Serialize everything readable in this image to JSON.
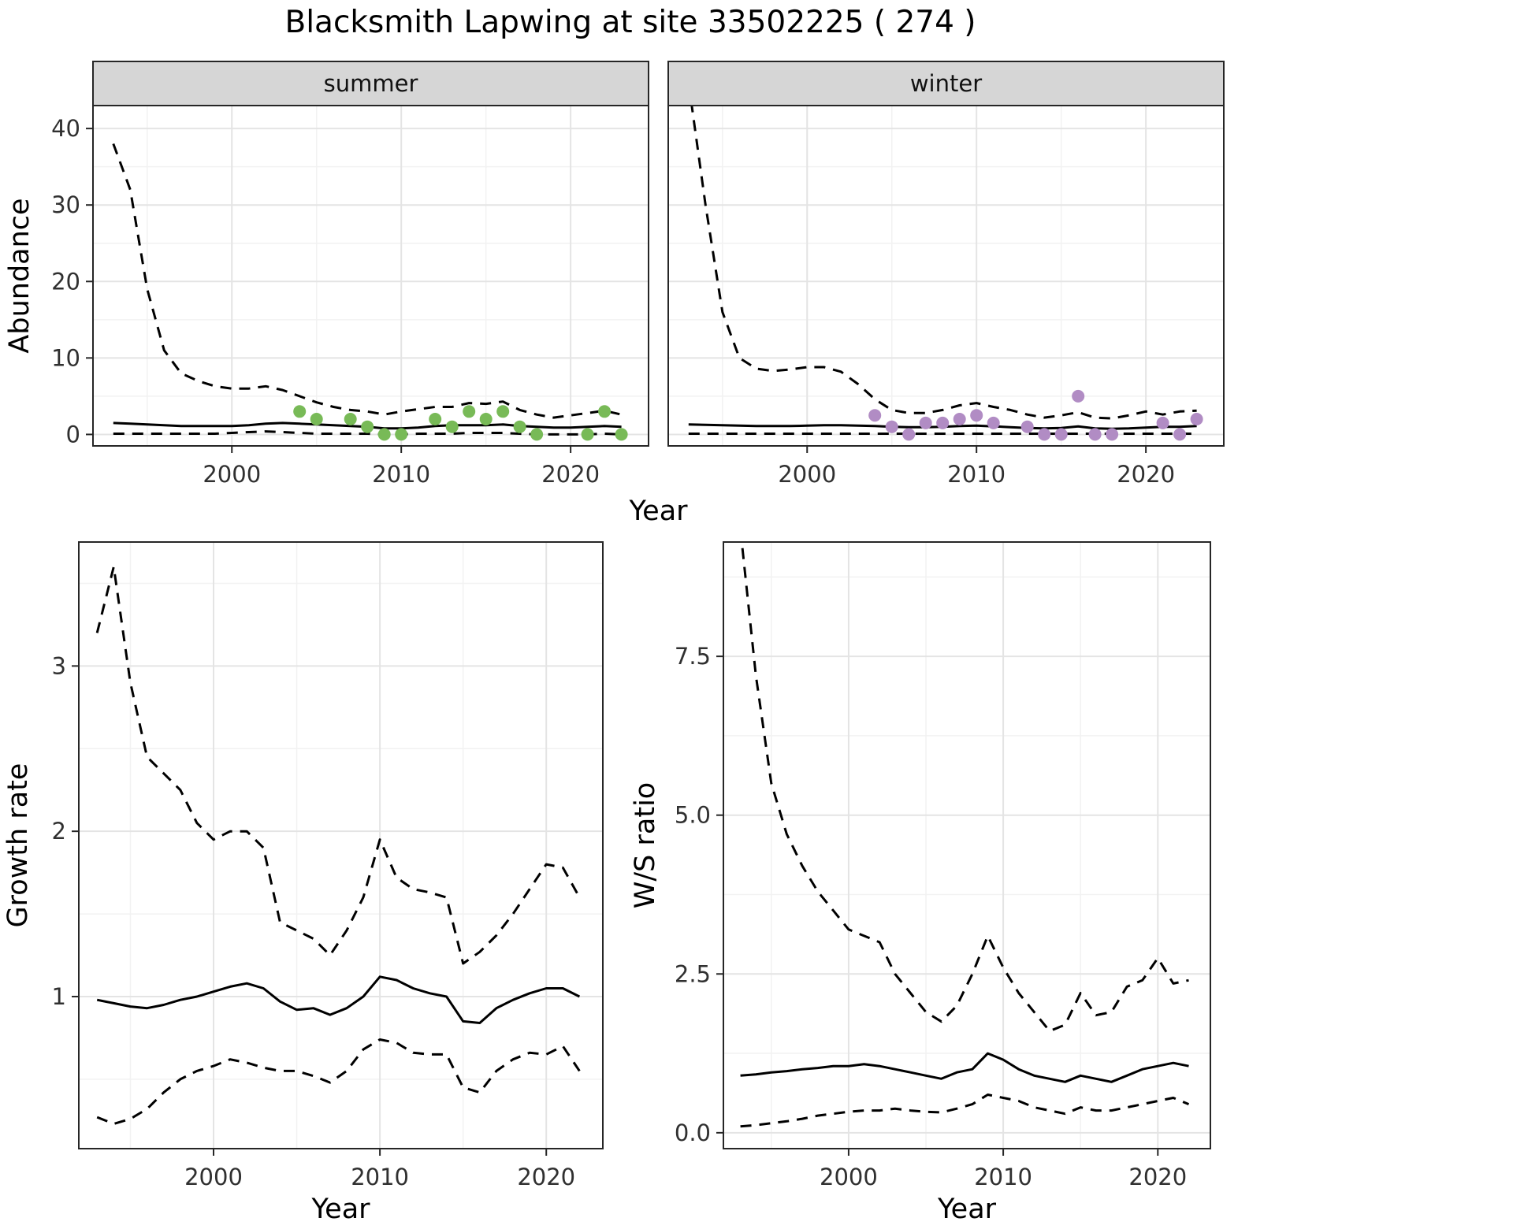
{
  "title": "Blacksmith Lapwing at site 33502225 ( 274 )",
  "theme": {
    "background": "#ffffff",
    "panel_background": "#ffffff",
    "panel_border": "#262626",
    "grid_major": "#e4e4e4",
    "grid_minor": "#f2f2f2",
    "strip_background": "#d6d6d6",
    "strip_text": "#111111",
    "tick_label_color": "#303030",
    "axis_title_color": "#000000",
    "line_color": "#000000",
    "summer_point_color": "#78ba57",
    "winter_point_color": "#b18cc4"
  },
  "chart_data": [
    {
      "id": "abundance-summer",
      "type": "line",
      "facet_label": "summer",
      "xlabel": "Year",
      "ylabel": "Abundance",
      "xlim": [
        1991.8,
        2024.6
      ],
      "ylim": [
        -1.5,
        43
      ],
      "xticks": {
        "values": [
          2000,
          2010,
          2020
        ],
        "labels": [
          "2000",
          "2010",
          "2020"
        ]
      },
      "yticks": {
        "values": [
          0,
          10,
          20,
          30,
          40
        ],
        "labels": [
          "0",
          "10",
          "20",
          "30",
          "40"
        ]
      },
      "x": [
        1993,
        1994,
        1995,
        1996,
        1997,
        1998,
        1999,
        2000,
        2001,
        2002,
        2003,
        2004,
        2005,
        2006,
        2007,
        2008,
        2009,
        2010,
        2011,
        2012,
        2013,
        2014,
        2015,
        2016,
        2017,
        2018,
        2019,
        2020,
        2021,
        2022,
        2023
      ],
      "series": [
        {
          "name": "upper-95ci",
          "style": "dashed",
          "values": [
            38,
            32,
            19,
            11,
            8,
            7,
            6.3,
            6,
            6,
            6.3,
            5.8,
            5,
            4.2,
            3.6,
            3.2,
            3,
            2.6,
            3,
            3.3,
            3.6,
            3.6,
            4.1,
            4,
            4.3,
            3.2,
            2.6,
            2.2,
            2.5,
            2.8,
            3.1,
            2.6
          ]
        },
        {
          "name": "mean",
          "style": "solid",
          "values": [
            1.5,
            1.4,
            1.3,
            1.2,
            1.1,
            1.1,
            1.1,
            1.1,
            1.2,
            1.4,
            1.5,
            1.4,
            1.3,
            1.2,
            1.1,
            1.0,
            0.8,
            0.8,
            0.9,
            1.1,
            1.2,
            1.2,
            1.2,
            1.3,
            1.1,
            1.0,
            0.9,
            0.9,
            1.0,
            1.1,
            1.0
          ]
        },
        {
          "name": "lower-95ci",
          "style": "dashed",
          "values": [
            0.1,
            0.1,
            0.1,
            0.1,
            0.1,
            0.1,
            0.1,
            0.2,
            0.3,
            0.4,
            0.3,
            0.2,
            0.1,
            0.1,
            0.1,
            0.1,
            0.0,
            0.0,
            0.1,
            0.1,
            0.1,
            0.2,
            0.2,
            0.2,
            0.1,
            0.0,
            0.0,
            0.0,
            0.0,
            0.1,
            0.0
          ]
        }
      ],
      "points": {
        "name": "observed-counts-summer",
        "color_key": "summer_point_color",
        "x": [
          2004,
          2005,
          2007,
          2008,
          2009,
          2010,
          2012,
          2013,
          2014,
          2015,
          2016,
          2017,
          2018,
          2021,
          2022,
          2023
        ],
        "y": [
          3,
          2,
          2,
          1,
          0,
          0,
          2,
          1,
          3,
          2,
          3,
          1,
          0,
          0,
          3,
          0
        ]
      }
    },
    {
      "id": "abundance-winter",
      "type": "line",
      "facet_label": "winter",
      "xlabel": "Year",
      "ylabel": "Abundance",
      "xlim": [
        1991.8,
        2024.6
      ],
      "ylim": [
        -1.5,
        43
      ],
      "xticks": {
        "values": [
          2000,
          2010,
          2020
        ],
        "labels": [
          "2000",
          "2010",
          "2020"
        ]
      },
      "yticks": {
        "values": [
          0,
          10,
          20,
          30,
          40
        ],
        "labels": [
          "0",
          "10",
          "20",
          "30",
          "40"
        ]
      },
      "x": [
        1993,
        1994,
        1995,
        1996,
        1997,
        1998,
        1999,
        2000,
        2001,
        2002,
        2003,
        2004,
        2005,
        2006,
        2007,
        2008,
        2009,
        2010,
        2011,
        2012,
        2013,
        2014,
        2015,
        2016,
        2017,
        2018,
        2019,
        2020,
        2021,
        2022,
        2023
      ],
      "series": [
        {
          "name": "upper-95ci",
          "style": "dashed",
          "values": [
            46,
            30,
            16,
            10,
            8.6,
            8.3,
            8.5,
            8.8,
            8.8,
            8.2,
            6.6,
            4.6,
            3.2,
            2.8,
            2.8,
            3.2,
            3.8,
            4.1,
            3.6,
            3.2,
            2.6,
            2.2,
            2.5,
            2.9,
            2.2,
            2.1,
            2.5,
            3.0,
            2.6,
            3.0,
            3.1
          ]
        },
        {
          "name": "mean",
          "style": "solid",
          "values": [
            1.3,
            1.25,
            1.2,
            1.15,
            1.1,
            1.1,
            1.1,
            1.15,
            1.2,
            1.2,
            1.15,
            1.1,
            1.0,
            0.95,
            0.95,
            1.0,
            1.1,
            1.15,
            1.05,
            0.95,
            0.85,
            0.8,
            0.85,
            1.05,
            0.8,
            0.75,
            0.8,
            0.9,
            1.0,
            1.0,
            1.1
          ]
        },
        {
          "name": "lower-95ci",
          "style": "dashed",
          "values": [
            0.1,
            0.1,
            0.1,
            0.1,
            0.1,
            0.1,
            0.1,
            0.1,
            0.1,
            0.1,
            0.1,
            0.1,
            0.1,
            0.1,
            0.1,
            0.1,
            0.1,
            0.1,
            0.1,
            0.1,
            0.1,
            0.1,
            0.1,
            0.1,
            0.1,
            0.1,
            0.1,
            0.1,
            0.1,
            0.1,
            0.1
          ]
        }
      ],
      "points": {
        "name": "observed-counts-winter",
        "color_key": "winter_point_color",
        "x": [
          2004,
          2005,
          2006,
          2007,
          2008,
          2009,
          2010,
          2011,
          2013,
          2014,
          2015,
          2016,
          2017,
          2018,
          2021,
          2022,
          2023
        ],
        "y": [
          2.5,
          1,
          0,
          1.5,
          1.5,
          2,
          2.5,
          1.5,
          1,
          0,
          0,
          5,
          0,
          0,
          1.5,
          0,
          2
        ]
      }
    },
    {
      "id": "growth-rate",
      "type": "line",
      "facet_label": "",
      "xlabel": "Year",
      "ylabel": "Growth rate",
      "xlim": [
        1991.9,
        2023.4
      ],
      "ylim": [
        0.08,
        3.75
      ],
      "xticks": {
        "values": [
          2000,
          2010,
          2020
        ],
        "labels": [
          "2000",
          "2010",
          "2020"
        ]
      },
      "yticks": {
        "values": [
          1,
          2,
          3
        ],
        "labels": [
          "1",
          "2",
          "3"
        ]
      },
      "x": [
        1993,
        1994,
        1995,
        1996,
        1997,
        1998,
        1999,
        2000,
        2001,
        2002,
        2003,
        2004,
        2005,
        2006,
        2007,
        2008,
        2009,
        2010,
        2011,
        2012,
        2013,
        2014,
        2015,
        2016,
        2017,
        2018,
        2019,
        2020,
        2021,
        2022
      ],
      "series": [
        {
          "name": "upper-95ci",
          "style": "dashed",
          "values": [
            3.2,
            3.6,
            2.9,
            2.45,
            2.35,
            2.25,
            2.05,
            1.95,
            2.0,
            2.0,
            1.9,
            1.45,
            1.4,
            1.35,
            1.25,
            1.4,
            1.6,
            1.95,
            1.72,
            1.65,
            1.63,
            1.6,
            1.2,
            1.27,
            1.37,
            1.5,
            1.65,
            1.8,
            1.78,
            1.6
          ]
        },
        {
          "name": "mean",
          "style": "solid",
          "values": [
            0.98,
            0.96,
            0.94,
            0.93,
            0.95,
            0.98,
            1.0,
            1.03,
            1.06,
            1.08,
            1.05,
            0.97,
            0.92,
            0.93,
            0.89,
            0.93,
            1.0,
            1.12,
            1.1,
            1.05,
            1.02,
            1.0,
            0.85,
            0.84,
            0.93,
            0.98,
            1.02,
            1.05,
            1.05,
            1.0
          ]
        },
        {
          "name": "lower-95ci",
          "style": "dashed",
          "values": [
            0.27,
            0.23,
            0.26,
            0.32,
            0.42,
            0.5,
            0.55,
            0.58,
            0.62,
            0.6,
            0.57,
            0.55,
            0.55,
            0.52,
            0.48,
            0.55,
            0.68,
            0.74,
            0.72,
            0.66,
            0.65,
            0.65,
            0.45,
            0.42,
            0.55,
            0.62,
            0.66,
            0.65,
            0.7,
            0.55
          ]
        }
      ]
    },
    {
      "id": "ws-ratio",
      "type": "line",
      "facet_label": "",
      "xlabel": "Year",
      "ylabel": "W/S ratio",
      "xlim": [
        1991.9,
        2023.4
      ],
      "ylim": [
        -0.25,
        9.3
      ],
      "xticks": {
        "values": [
          2000,
          2010,
          2020
        ],
        "labels": [
          "2000",
          "2010",
          "2020"
        ]
      },
      "yticks": {
        "values": [
          0,
          2.5,
          5,
          7.5
        ],
        "labels": [
          "0.0",
          "2.5",
          "5.0",
          "7.5"
        ]
      },
      "x": [
        1993,
        1994,
        1995,
        1996,
        1997,
        1998,
        1999,
        2000,
        2001,
        2002,
        2003,
        2004,
        2005,
        2006,
        2007,
        2008,
        2009,
        2010,
        2011,
        2012,
        2013,
        2014,
        2015,
        2016,
        2017,
        2018,
        2019,
        2020,
        2021,
        2022
      ],
      "series": [
        {
          "name": "upper-95ci",
          "style": "dashed",
          "values": [
            9.5,
            7.2,
            5.5,
            4.7,
            4.2,
            3.8,
            3.5,
            3.2,
            3.1,
            3.0,
            2.5,
            2.2,
            1.9,
            1.75,
            2.0,
            2.5,
            3.1,
            2.6,
            2.2,
            1.9,
            1.6,
            1.7,
            2.2,
            1.85,
            1.9,
            2.3,
            2.4,
            2.75,
            2.35,
            2.4
          ]
        },
        {
          "name": "mean",
          "style": "solid",
          "values": [
            0.9,
            0.92,
            0.95,
            0.97,
            1.0,
            1.02,
            1.05,
            1.05,
            1.08,
            1.05,
            1.0,
            0.95,
            0.9,
            0.85,
            0.95,
            1.0,
            1.25,
            1.15,
            1.0,
            0.9,
            0.85,
            0.8,
            0.9,
            0.85,
            0.8,
            0.9,
            1.0,
            1.05,
            1.1,
            1.05
          ]
        },
        {
          "name": "lower-95ci",
          "style": "dashed",
          "values": [
            0.1,
            0.12,
            0.15,
            0.18,
            0.22,
            0.27,
            0.3,
            0.33,
            0.35,
            0.35,
            0.38,
            0.35,
            0.33,
            0.32,
            0.38,
            0.45,
            0.6,
            0.55,
            0.5,
            0.4,
            0.35,
            0.3,
            0.4,
            0.35,
            0.35,
            0.4,
            0.45,
            0.5,
            0.55,
            0.45
          ]
        }
      ]
    }
  ]
}
